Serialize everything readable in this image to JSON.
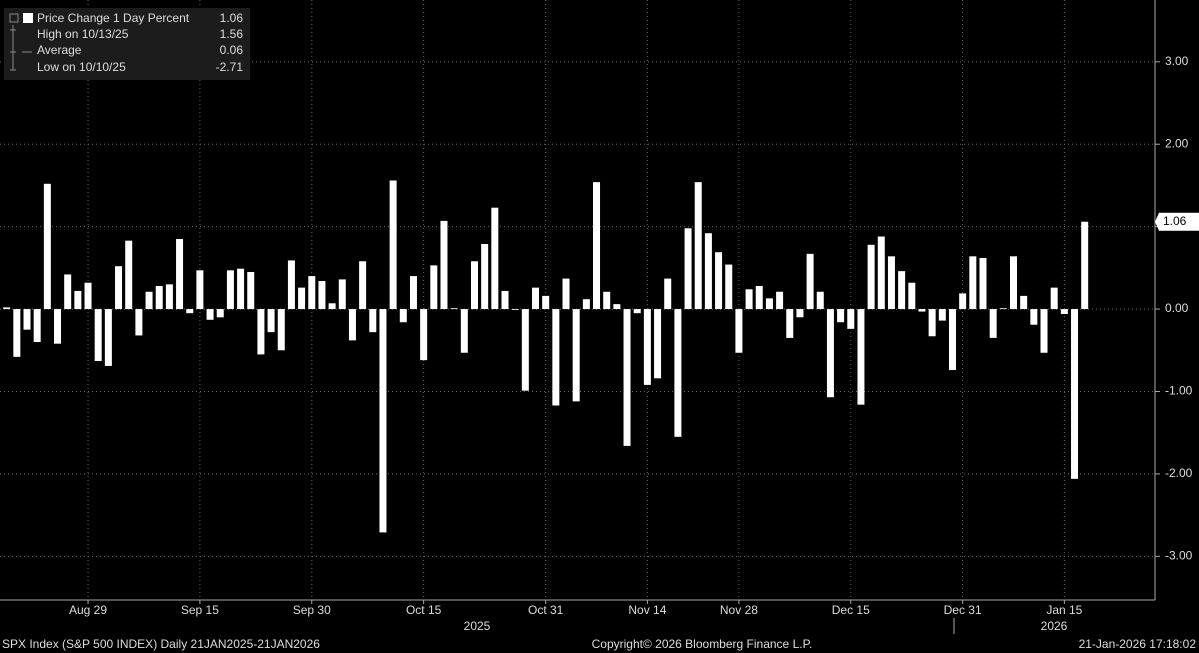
{
  "chart_data": {
    "type": "bar",
    "legend": [
      {
        "label": "Price Change 1 Day Percent",
        "value": 1.06
      },
      {
        "label": "High on 10/13/25",
        "value": 1.56
      },
      {
        "label": "Average",
        "value": 0.06
      },
      {
        "label": "Low on 10/10/25",
        "value": -2.71
      }
    ],
    "categories": [
      null,
      null,
      null,
      null,
      null,
      null,
      null,
      null,
      null,
      "Aug 29",
      null,
      null,
      null,
      null,
      null,
      null,
      null,
      null,
      null,
      null,
      "Sep 15",
      null,
      null,
      null,
      null,
      null,
      null,
      null,
      null,
      null,
      null,
      "Sep 30",
      null,
      null,
      null,
      null,
      null,
      null,
      null,
      null,
      null,
      null,
      "Oct 15",
      null,
      null,
      null,
      null,
      null,
      null,
      null,
      null,
      null,
      null,
      null,
      "Oct 31",
      null,
      null,
      null,
      null,
      null,
      null,
      null,
      null,
      null,
      "Nov 14",
      null,
      null,
      null,
      null,
      null,
      null,
      null,
      null,
      "Nov 28",
      null,
      null,
      null,
      null,
      null,
      null,
      null,
      null,
      null,
      null,
      "Dec 15",
      null,
      null,
      null,
      null,
      null,
      null,
      null,
      null,
      null,
      null,
      "Dec 31",
      null,
      null,
      null,
      null,
      null,
      null,
      null,
      null,
      null,
      "Jan 15",
      null,
      null
    ],
    "values": [
      -0.25,
      0.02,
      -0.58,
      -0.25,
      -0.4,
      1.52,
      -0.42,
      0.42,
      0.22,
      0.32,
      -0.63,
      -0.69,
      0.52,
      0.83,
      -0.32,
      0.21,
      0.28,
      0.3,
      0.85,
      -0.05,
      0.47,
      -0.13,
      -0.1,
      0.47,
      0.49,
      0.45,
      -0.55,
      -0.28,
      -0.5,
      0.59,
      0.26,
      0.4,
      0.34,
      0.07,
      0.36,
      -0.38,
      0.58,
      -0.28,
      -2.71,
      1.56,
      -0.16,
      0.4,
      -0.62,
      0.53,
      1.07,
      0.01,
      -0.53,
      0.58,
      0.79,
      1.23,
      0.22,
      -0.01,
      -0.99,
      0.26,
      0.16,
      -1.17,
      0.37,
      -1.12,
      0.12,
      1.54,
      0.21,
      0.06,
      -1.66,
      -0.05,
      -0.92,
      -0.84,
      0.37,
      -1.55,
      0.98,
      1.54,
      0.92,
      0.69,
      0.54,
      -0.53,
      0.24,
      0.28,
      0.13,
      0.21,
      -0.35,
      -0.1,
      0.67,
      0.21,
      -1.07,
      -0.16,
      -0.24,
      -1.16,
      0.78,
      0.88,
      0.64,
      0.46,
      0.32,
      -0.03,
      -0.33,
      -0.14,
      -0.74,
      0.19,
      0.64,
      0.62,
      -0.35,
      0.01,
      0.64,
      0.16,
      -0.19,
      -0.53,
      0.26,
      -0.06,
      -2.06,
      1.06
    ],
    "color": "#ffffff",
    "ylim": [
      -3.53,
      3.75
    ],
    "yticks": [
      {
        "value": -3,
        "label": "-3.00"
      },
      {
        "value": -2,
        "label": "-2.00"
      },
      {
        "value": -1,
        "label": "-1.00"
      },
      {
        "value": 0,
        "label": "0.00"
      },
      {
        "value": 1,
        "label": "1.00"
      },
      {
        "value": 2,
        "label": "2.00"
      },
      {
        "value": 3,
        "label": "3.00"
      }
    ],
    "grid": true,
    "years": [
      "2025",
      "2026"
    ],
    "footer": {
      "left": "SPX Index (S&P 500 INDEX) Daily 21JAN2025-21JAN2026",
      "center": "Copyright© 2026 Bloomberg Finance L.P.",
      "right": "21-Jan-2026 17:18:02"
    }
  }
}
